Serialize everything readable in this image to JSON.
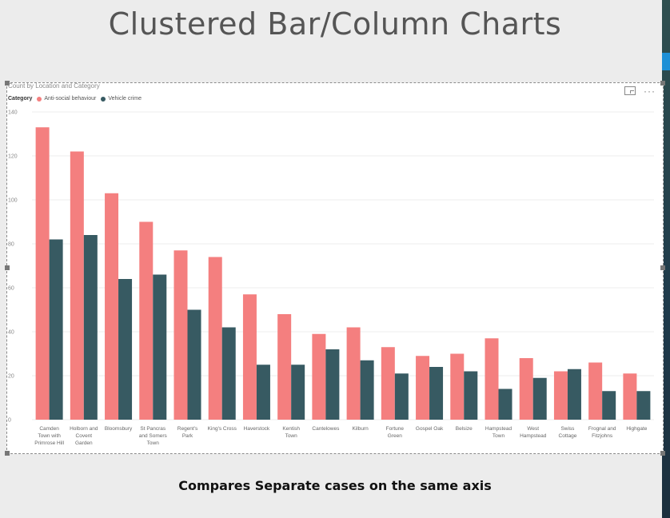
{
  "slide": {
    "title": "Clustered Bar/Column Charts",
    "subtitle": "Compares Separate cases on the same axis"
  },
  "visual": {
    "header": "Count by Location and Category",
    "legend_title": "Category",
    "toolbar": {
      "focus_icon": "focus-mode-icon",
      "more_icon": "more-options-icon"
    }
  },
  "colors": {
    "series_1": "#f47f7f",
    "series_2": "#375a62"
  },
  "chart_data": {
    "type": "bar",
    "title": "Count by Location and Category",
    "legend_title": "Category",
    "legend_position": "top-left",
    "grid": true,
    "ylim": [
      0,
      140
    ],
    "yticks": [
      0,
      20,
      40,
      60,
      80,
      100,
      120,
      140
    ],
    "categories": [
      [
        "Camden",
        "Town with",
        "Primrose Hill"
      ],
      [
        "Holborn and",
        "Covent",
        "Garden"
      ],
      [
        "Bloomsbury"
      ],
      [
        "St Pancras",
        "and Somers",
        "Town"
      ],
      [
        "Regent's",
        "Park"
      ],
      [
        "King's Cross"
      ],
      [
        "Haverstock"
      ],
      [
        "Kentish",
        "Town"
      ],
      [
        "Cantelowes"
      ],
      [
        "Kilburn"
      ],
      [
        "Fortune",
        "Green"
      ],
      [
        "Gospel Oak"
      ],
      [
        "Belsize"
      ],
      [
        "Hampstead",
        "Town"
      ],
      [
        "West",
        "Hampstead"
      ],
      [
        "Swiss",
        "Cottage"
      ],
      [
        "Frognal and",
        "Fitzjohns"
      ],
      [
        "Highgate"
      ]
    ],
    "series": [
      {
        "name": "Anti-social behaviour",
        "color": "#f47f7f",
        "values": [
          133,
          122,
          103,
          90,
          77,
          74,
          57,
          48,
          39,
          42,
          33,
          29,
          30,
          37,
          28,
          22,
          26,
          21
        ]
      },
      {
        "name": "Vehicle crime",
        "color": "#375a62",
        "values": [
          82,
          84,
          64,
          66,
          50,
          42,
          25,
          25,
          32,
          27,
          21,
          24,
          22,
          14,
          19,
          23,
          13,
          13
        ]
      }
    ]
  }
}
